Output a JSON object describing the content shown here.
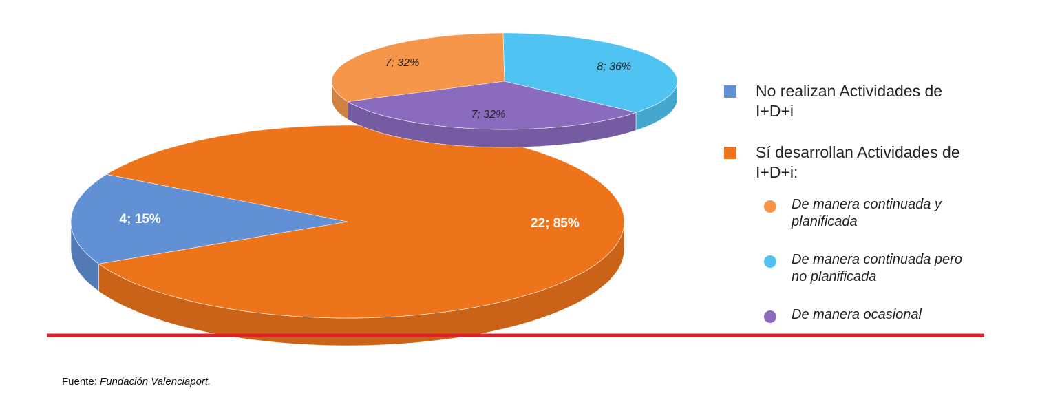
{
  "chart_data": [
    {
      "type": "pie",
      "categories": [
        "No realizan Actividades de I+D+i",
        "Sí desarrollan Actividades de I+D+i:"
      ],
      "values": [
        4,
        22
      ],
      "value_labels": [
        "4; 15%",
        "22; 85%"
      ],
      "colors": [
        "#6190d4",
        "#ee741b"
      ],
      "legend_marker": "square"
    },
    {
      "type": "pie",
      "categories": [
        "De manera continuada y planificada",
        "De manera continuada pero no planificada",
        "De manera ocasional"
      ],
      "values": [
        7,
        8,
        7
      ],
      "value_labels": [
        "7; 32%",
        "8; 36%",
        "7; 32%"
      ],
      "colors": [
        "#f5964b",
        "#4fc4f2",
        "#8a6bbd"
      ],
      "legend_marker": "circle"
    }
  ],
  "source": {
    "label": "Fuente:",
    "text": "Fundación Valenciaport."
  }
}
